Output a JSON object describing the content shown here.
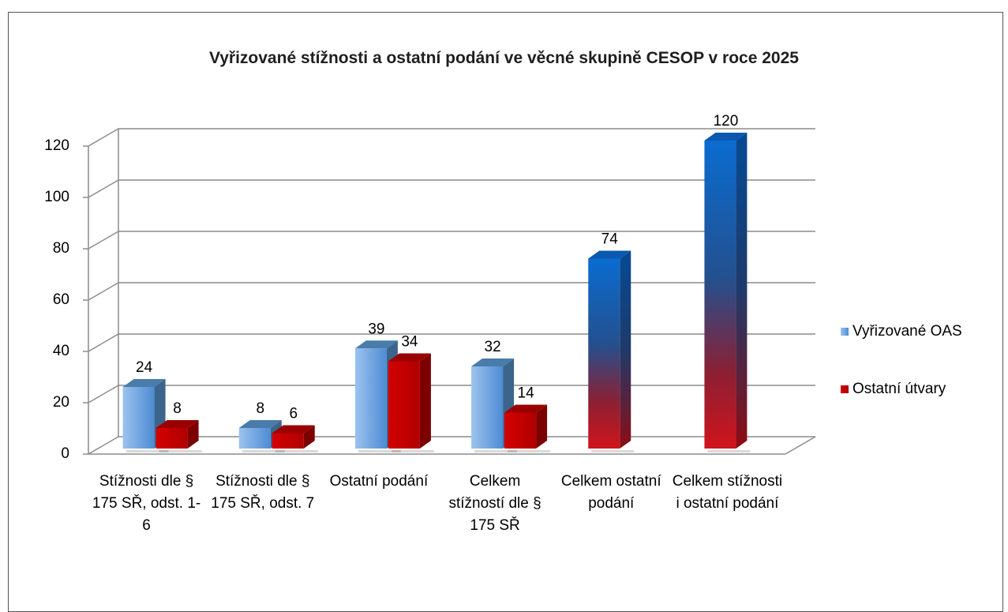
{
  "chart_data": {
    "type": "bar3d",
    "title": "Vyřizované stížnosti a ostatní podání ve věcné skupině CESOP  v roce 2025",
    "categories": [
      "Stížnosti dle § 175 SŘ, odst. 1-6",
      "Stížnosti dle § 175 SŘ, odst. 7",
      "Ostatní podání",
      "Celkem stížností dle § 175 SŘ",
      "Celkem ostatní podání",
      "Celkem stížnosti i ostatní podání"
    ],
    "series": [
      {
        "name": "Vyřizované OAS",
        "color": "#5b9bd5",
        "values": [
          24,
          8,
          39,
          32,
          74,
          120
        ]
      },
      {
        "name": "Ostatní útvary",
        "color": "#c00000",
        "values": [
          8,
          6,
          34,
          14,
          null,
          null
        ]
      }
    ],
    "ylim": [
      0,
      120
    ],
    "yticks": [
      0,
      20,
      40,
      60,
      80,
      100,
      120
    ],
    "grid": true,
    "legend": "right"
  }
}
